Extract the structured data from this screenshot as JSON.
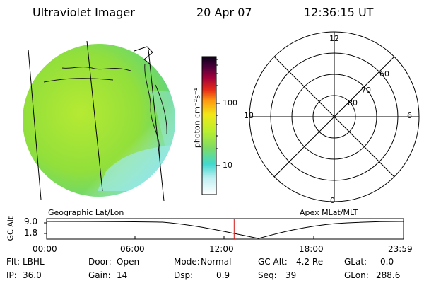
{
  "header": {
    "title": "Ultraviolet Imager",
    "date": "20 Apr 07",
    "time": "12:36:15 UT"
  },
  "colorbar": {
    "label": "photon cm⁻²s⁻¹",
    "ticks": [
      {
        "label": "100",
        "value": 100
      },
      {
        "label": "10",
        "value": 10
      }
    ]
  },
  "polar": {
    "labels": {
      "top": "12",
      "left": "18",
      "right": "6",
      "bottom": "0",
      "lat60": "60",
      "lat70": "70",
      "lat80": "80"
    }
  },
  "timeline": {
    "left_label": "Geographic Lat/Lon",
    "right_label": "Apex MLat/MLT",
    "y_label": "GC Alt",
    "y_ticks": [
      "9.0",
      "1.8"
    ],
    "x_ticks": [
      "00:00",
      "06:00",
      "12:00",
      "18:00",
      "23:59"
    ],
    "current_time_hours": 12.6
  },
  "stats": {
    "filter_label": "Flt:",
    "filter_value": "LBHL",
    "door_label": "Door:",
    "door_value": "Open",
    "mode_label": "Mode:",
    "mode_value": "Normal",
    "gcalt_label": "GC Alt:",
    "gcalt_value": "4.2 Re",
    "glat_label": "GLat:",
    "glat_value": "0.0",
    "ip_label": "IP:",
    "ip_value": "36.0",
    "gain_label": "Gain:",
    "gain_value": "14",
    "dsp_label": "Dsp:",
    "dsp_value": "0.9",
    "seq_label": "Seq:",
    "seq_value": "39",
    "glon_label": "GLon:",
    "glon_value": "288.6"
  },
  "colors": {
    "accent_red": "#d21818",
    "image_green": "#9be23a",
    "image_cyan": "#42d8d0"
  }
}
